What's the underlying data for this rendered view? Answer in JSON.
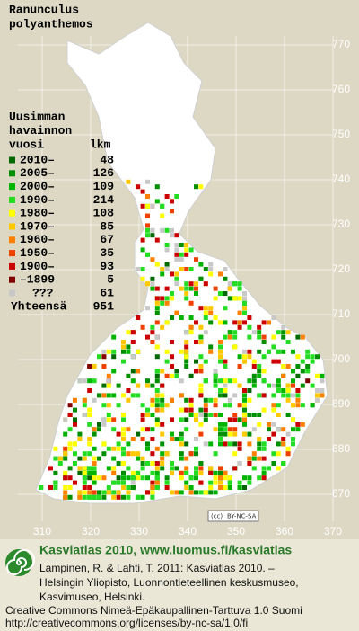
{
  "title": [
    "Ranunculus",
    "polyanthemos"
  ],
  "legend": {
    "heading": [
      "Uusimman",
      "havainnon",
      "vuosi"
    ],
    "count_heading": "lkm",
    "rows": [
      {
        "label": "2010–",
        "count": 48,
        "color": "#006a00"
      },
      {
        "label": "2005–",
        "count": 126,
        "color": "#008f00"
      },
      {
        "label": "2000–",
        "count": 109,
        "color": "#00b400"
      },
      {
        "label": "1990–",
        "count": 214,
        "color": "#22dd22"
      },
      {
        "label": "1980–",
        "count": 108,
        "color": "#ffff00"
      },
      {
        "label": "1970–",
        "count": 85,
        "color": "#ffc800"
      },
      {
        "label": "1960–",
        "count": 67,
        "color": "#ff8000"
      },
      {
        "label": "1950–",
        "count": 35,
        "color": "#f04000"
      },
      {
        "label": "1900–",
        "count": 93,
        "color": "#cc0000"
      },
      {
        "label": "–1899",
        "count": 5,
        "color": "#800000"
      },
      {
        "label": "???",
        "count": 61,
        "color": "#c8c8c8"
      }
    ],
    "total": {
      "label": "Yhteensä",
      "count": 951
    }
  },
  "grid": {
    "x_labels": [
      310,
      320,
      330,
      340,
      350,
      360,
      370
    ],
    "y_labels": [
      670,
      680,
      690,
      700,
      710,
      720,
      730,
      740,
      750,
      760,
      770
    ]
  },
  "badge": [
    "(cc)",
    "BY-NC-SA"
  ],
  "footer": {
    "heading": "Kasviatlas 2010, www.luomus.fi/kasviatlas",
    "citation": [
      "Lampinen, R. & Lahti, T. 2011: Kasviatlas 2010. –",
      "Helsingin Yliopisto, Luonnontieteellinen keskusmuseo,",
      "Kasvimuseo, Helsinki."
    ],
    "license": [
      "Creative Commons Nimeä-Epäkaupallinen-Tarttuva 1.0 Suomi",
      "http://creativecommons.org/licenses/by-nc-sa/1.0/fi"
    ]
  }
}
